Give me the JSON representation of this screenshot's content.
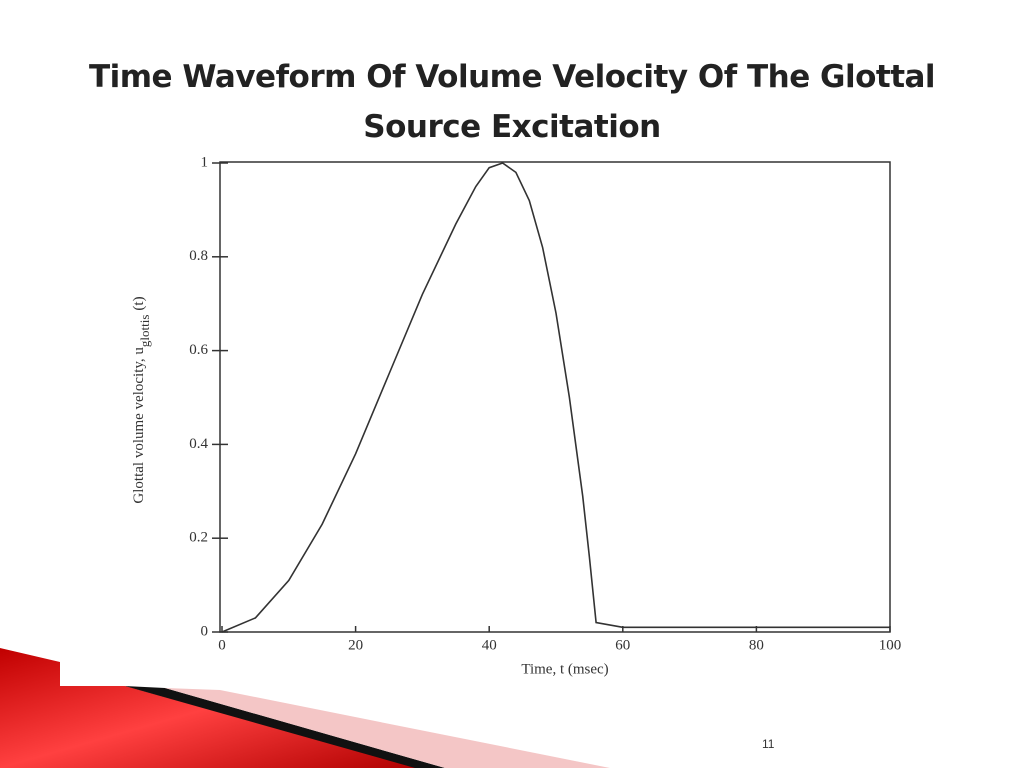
{
  "page_number": "11",
  "chart_data": {
    "type": "line",
    "title": "Time Waveform Of Volume Velocity Of The Glottal Source Excitation",
    "xlabel": "Time, t (msec)",
    "ylabel_parts": [
      "Glottal volume velocity, u",
      "glottis",
      "(t)"
    ],
    "x": [
      0,
      5,
      10,
      15,
      20,
      25,
      30,
      35,
      38,
      40,
      42,
      44,
      46,
      48,
      50,
      52,
      54,
      55,
      56,
      60,
      80,
      100
    ],
    "values": [
      0,
      0.03,
      0.11,
      0.23,
      0.38,
      0.55,
      0.72,
      0.87,
      0.95,
      0.99,
      1.0,
      0.98,
      0.92,
      0.82,
      0.68,
      0.5,
      0.29,
      0.16,
      0.02,
      0.01,
      0.01,
      0.01
    ],
    "color": "#333333",
    "xlim": [
      0,
      100
    ],
    "xticks": [
      0,
      20,
      40,
      60,
      80,
      100
    ],
    "ylim": [
      0,
      1
    ],
    "yticks": [
      0,
      0.2,
      0.4,
      0.6,
      0.8,
      1
    ]
  }
}
